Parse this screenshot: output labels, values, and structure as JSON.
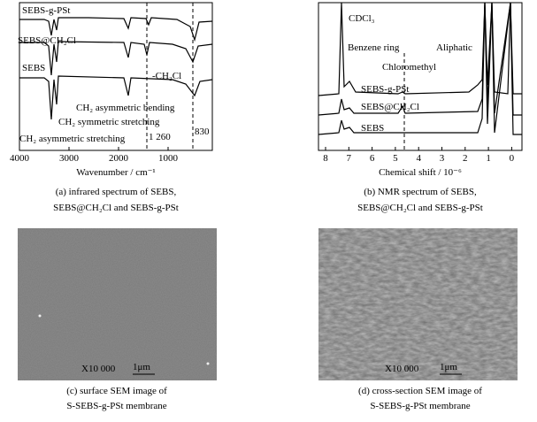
{
  "panels": [
    {
      "x_ticks": [
        "4000",
        "3000",
        "2000",
        "1000"
      ],
      "x_label": "Wavenumber / cm⁻¹",
      "annotations": [
        "SEBS-g-PSt",
        "SEBS@CH₂Cl",
        "SEBS",
        "-CH₂Cl",
        "CH₂ asymmetric bending",
        "CH₂ symmetric stretching",
        "CH₂ asymmetric stretching",
        "1 260",
        "830"
      ],
      "caption": [
        "(a) infrared spectrum of SEBS,",
        "SEBS@CH₂Cl and SEBS-g-PSt"
      ]
    },
    {
      "x_ticks": [
        "8",
        "7",
        "6",
        "5",
        "4",
        "3",
        "2",
        "1",
        "0"
      ],
      "x_label": "Chemical shift / 10⁻⁶",
      "annotations": [
        "CDCl₃",
        "Benzene ring",
        "Chloromethyl",
        "Aliphatic",
        "SEBS-g-PSt",
        "SEBS@CH₂Cl",
        "SEBS"
      ],
      "caption": [
        "(b) NMR spectrum of SEBS,",
        "SEBS@CH₂Cl and SEBS-g-PSt"
      ]
    },
    {
      "magnification": "X10 000",
      "scale": "1μm",
      "caption": [
        "(c) surface SEM image of",
        "S-SEBS-g-PSt membrane"
      ]
    },
    {
      "magnification": "X10 000",
      "scale": "1μm",
      "caption": [
        "(d) cross-section SEM image of",
        "S-SEBS-g-PSt membrane"
      ]
    }
  ]
}
